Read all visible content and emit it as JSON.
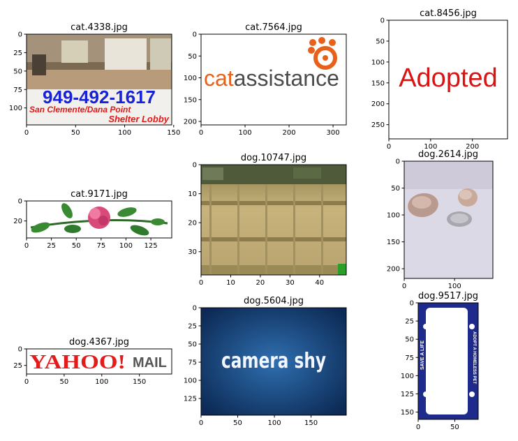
{
  "chart_data": [
    {
      "type": "image",
      "title": "cat.4338.jpg",
      "width": 148,
      "height": 123,
      "xticks": [
        0,
        50,
        100,
        150
      ],
      "yticks": [
        0,
        25,
        50,
        75,
        100
      ],
      "image_text": [
        "949-492-1617",
        "San Clemente/Dana Point",
        "Shelter Lobby"
      ]
    },
    {
      "type": "image",
      "title": "cat.7564.jpg",
      "width": 330,
      "height": 208,
      "xticks": [
        0,
        100,
        200,
        300
      ],
      "yticks": [
        0,
        50,
        100,
        150,
        200
      ],
      "image_text": [
        "catassistance"
      ]
    },
    {
      "type": "image",
      "title": "cat.8456.jpg",
      "width": 284,
      "height": 284,
      "xticks": [
        0,
        100,
        200
      ],
      "yticks": [
        0,
        50,
        100,
        150,
        200,
        250
      ],
      "image_text": [
        "Adopted"
      ]
    },
    {
      "type": "image",
      "title": "cat.9171.jpg",
      "width": 146,
      "height": 37,
      "xticks": [
        0,
        25,
        50,
        75,
        100,
        125
      ],
      "yticks": [
        0,
        20
      ],
      "image_text": []
    },
    {
      "type": "image",
      "title": "dog.10747.jpg",
      "width": 49,
      "height": 38,
      "xticks": [
        0,
        10,
        20,
        30,
        40
      ],
      "yticks": [
        0,
        10,
        20,
        30
      ],
      "image_text": []
    },
    {
      "type": "image",
      "title": "dog.2614.jpg",
      "width": 176,
      "height": 218,
      "xticks": [
        0,
        100
      ],
      "yticks": [
        0,
        50,
        100,
        150,
        200
      ],
      "image_text": []
    },
    {
      "type": "image",
      "title": "dog.4367.jpg",
      "width": 193,
      "height": 38,
      "xticks": [
        0,
        50,
        100,
        150
      ],
      "yticks": [
        0,
        25
      ],
      "image_text": [
        "YAHOO!",
        "MAIL"
      ]
    },
    {
      "type": "image",
      "title": "dog.5604.jpg",
      "width": 198,
      "height": 148,
      "xticks": [
        0,
        50,
        100,
        150
      ],
      "yticks": [
        0,
        25,
        50,
        75,
        100,
        125
      ],
      "image_text": [
        "camera shy"
      ]
    },
    {
      "type": "image",
      "title": "dog.9517.jpg",
      "width": 82,
      "height": 160,
      "xticks": [
        0,
        50
      ],
      "yticks": [
        0,
        25,
        50,
        75,
        100,
        125,
        150
      ],
      "image_text": [
        "SAVE A LIFE",
        "ADOPT A HOMELESS PET"
      ]
    }
  ]
}
